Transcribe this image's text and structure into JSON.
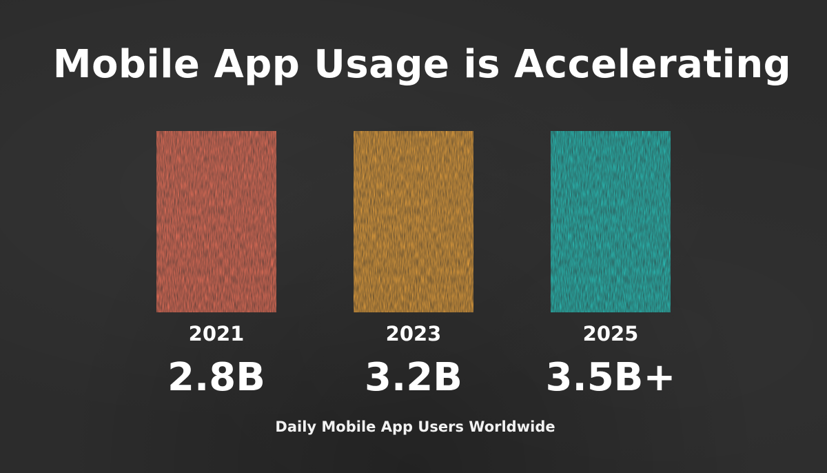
{
  "title": "Mobile App Usage is Accelerating",
  "caption": "Daily Mobile App Users Worldwide",
  "chart_data": {
    "type": "bar",
    "categories": [
      "2021",
      "2023",
      "2025"
    ],
    "value_labels": [
      "2.8B",
      "3.2B",
      "3.5B+"
    ],
    "values": [
      2.8,
      3.2,
      3.5
    ],
    "colors": [
      "#f4735a",
      "#f0a63c",
      "#27c8c0"
    ],
    "title": "Mobile App Usage is Accelerating",
    "xlabel": "Daily Mobile App Users Worldwide",
    "ylabel": "",
    "grid": false,
    "legend": "none"
  }
}
